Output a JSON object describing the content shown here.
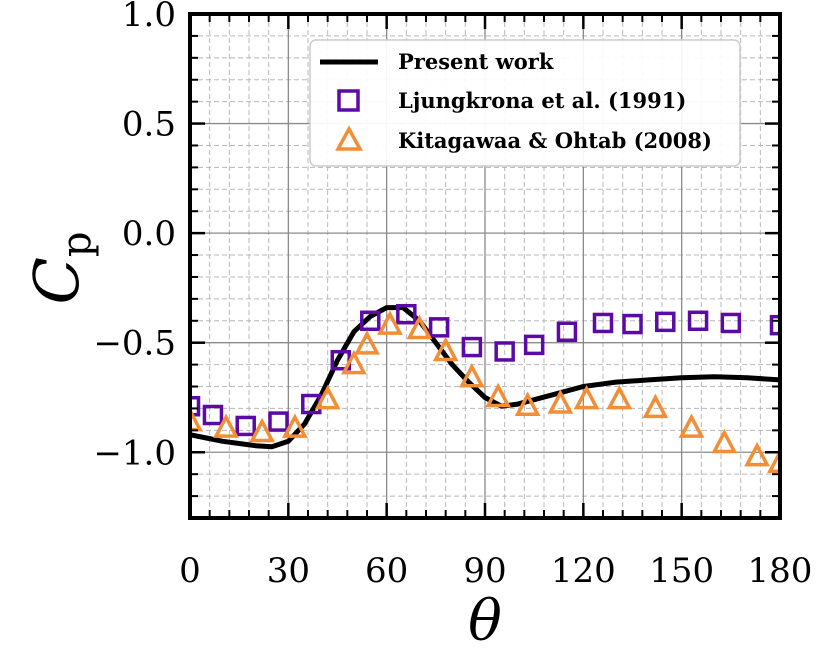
{
  "chart_data": {
    "type": "line",
    "xlabel": "θ",
    "ylabel": "C",
    "ylabel_sub": "p",
    "xlim": [
      0,
      180
    ],
    "ylim": [
      -1.3,
      1.0
    ],
    "xticks": [
      0,
      30,
      60,
      90,
      120,
      150,
      180
    ],
    "xtick_labels": [
      "0",
      "30",
      "60",
      "90",
      "120",
      "150",
      "180"
    ],
    "yticks": [
      -1.0,
      -0.5,
      0.0,
      0.5,
      1.0
    ],
    "ytick_labels": [
      "−1.0",
      "−0.5",
      "0.0",
      "0.5",
      "1.0"
    ],
    "grid": true,
    "minor_grid": true,
    "legend_position": "top-right",
    "series": [
      {
        "name": "Present work",
        "kind": "line",
        "color": "#000000",
        "x": [
          0,
          5,
          10,
          15,
          20,
          25,
          30,
          35,
          40,
          45,
          50,
          55,
          60,
          65,
          70,
          75,
          80,
          85,
          90,
          95,
          100,
          105,
          110,
          115,
          120,
          125,
          130,
          140,
          150,
          160,
          170,
          180
        ],
        "y": [
          -0.92,
          -0.935,
          -0.95,
          -0.96,
          -0.97,
          -0.975,
          -0.95,
          -0.87,
          -0.74,
          -0.58,
          -0.45,
          -0.38,
          -0.34,
          -0.34,
          -0.4,
          -0.5,
          -0.6,
          -0.68,
          -0.75,
          -0.79,
          -0.78,
          -0.76,
          -0.74,
          -0.72,
          -0.7,
          -0.69,
          -0.68,
          -0.67,
          -0.66,
          -0.655,
          -0.66,
          -0.67
        ]
      },
      {
        "name": "Ljungkrona et al. (1991)",
        "kind": "marker",
        "marker": "square",
        "color": "#5b0aa6",
        "x": [
          0,
          7,
          17,
          27,
          37,
          46,
          55,
          66,
          76,
          86,
          96,
          105,
          115,
          126,
          135,
          145,
          155,
          165,
          180
        ],
        "y": [
          -0.79,
          -0.83,
          -0.88,
          -0.86,
          -0.78,
          -0.58,
          -0.4,
          -0.37,
          -0.43,
          -0.52,
          -0.54,
          -0.51,
          -0.45,
          -0.41,
          -0.415,
          -0.405,
          -0.4,
          -0.41,
          -0.42
        ]
      },
      {
        "name": "Kitagawaa & Ohtab (2008)",
        "kind": "marker",
        "marker": "triangle",
        "color": "#f28e36",
        "x": [
          0,
          11,
          22,
          32,
          42,
          50,
          54,
          61,
          70,
          78,
          86,
          94,
          103,
          113,
          121,
          131,
          142,
          153,
          163,
          173,
          180
        ],
        "y": [
          -0.86,
          -0.89,
          -0.91,
          -0.89,
          -0.76,
          -0.6,
          -0.51,
          -0.42,
          -0.44,
          -0.54,
          -0.66,
          -0.75,
          -0.79,
          -0.78,
          -0.76,
          -0.76,
          -0.8,
          -0.89,
          -0.96,
          -1.02,
          -1.05
        ]
      }
    ]
  }
}
